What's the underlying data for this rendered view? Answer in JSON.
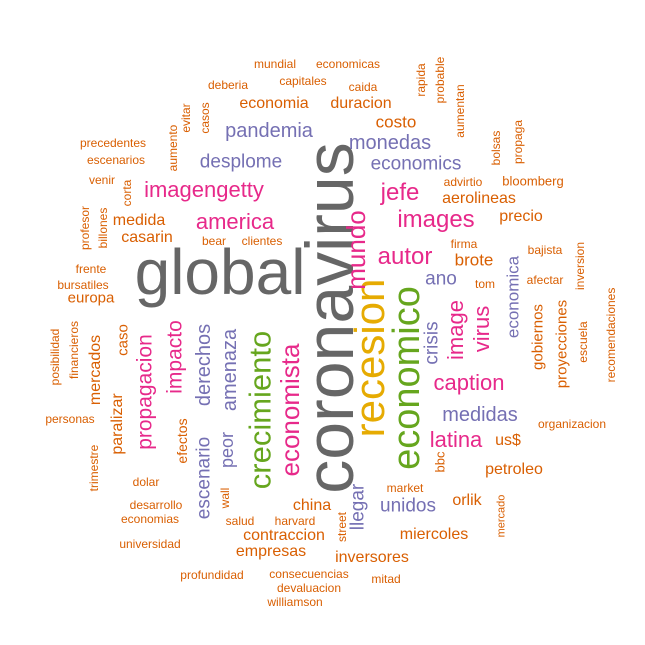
{
  "colors": {
    "gray": "#666666",
    "gold": "#E6AB02",
    "green": "#66A61E",
    "magenta": "#E7298A",
    "purple": "#7570B3",
    "orange": "#D95F02"
  },
  "words": [
    {
      "text": "global",
      "color": "gray",
      "rot": 0
    },
    {
      "text": "coronavirus",
      "color": "gray",
      "rot": 90
    },
    {
      "text": "recesion",
      "color": "gold",
      "rot": 90
    },
    {
      "text": "economico",
      "color": "green",
      "rot": 90
    },
    {
      "text": "crecimiento",
      "color": "green",
      "rot": 90
    },
    {
      "text": "economista",
      "color": "magenta",
      "rot": 90
    },
    {
      "text": "mundo",
      "color": "magenta",
      "rot": 90
    },
    {
      "text": "imagengetty",
      "color": "magenta",
      "rot": 0
    },
    {
      "text": "america",
      "color": "magenta",
      "rot": 0
    },
    {
      "text": "images",
      "color": "magenta",
      "rot": 0
    },
    {
      "text": "jefe",
      "color": "magenta",
      "rot": 0
    },
    {
      "text": "autor",
      "color": "magenta",
      "rot": 0
    },
    {
      "text": "caption",
      "color": "magenta",
      "rot": 0
    },
    {
      "text": "latina",
      "color": "magenta",
      "rot": 0
    },
    {
      "text": "image",
      "color": "magenta",
      "rot": 90
    },
    {
      "text": "virus",
      "color": "magenta",
      "rot": 90
    },
    {
      "text": "propagacion",
      "color": "magenta",
      "rot": 90
    },
    {
      "text": "impacto",
      "color": "magenta",
      "rot": 90
    },
    {
      "text": "amenaza",
      "color": "purple",
      "rot": 90
    },
    {
      "text": "derechos",
      "color": "purple",
      "rot": 90
    },
    {
      "text": "peor",
      "color": "purple",
      "rot": 90
    },
    {
      "text": "escenario",
      "color": "purple",
      "rot": 90
    },
    {
      "text": "pandemia",
      "color": "purple",
      "rot": 0
    },
    {
      "text": "desplome",
      "color": "purple",
      "rot": 0
    },
    {
      "text": "monedas",
      "color": "purple",
      "rot": 0
    },
    {
      "text": "economics",
      "color": "purple",
      "rot": 0
    },
    {
      "text": "medidas",
      "color": "purple",
      "rot": 0
    },
    {
      "text": "unidos",
      "color": "purple",
      "rot": 0
    },
    {
      "text": "ano",
      "color": "purple",
      "rot": 0
    },
    {
      "text": "crisis",
      "color": "purple",
      "rot": 90
    },
    {
      "text": "economica",
      "color": "purple",
      "rot": 90
    },
    {
      "text": "llegar",
      "color": "purple",
      "rot": 90
    },
    {
      "text": "economia",
      "color": "orange",
      "rot": 0
    },
    {
      "text": "duracion",
      "color": "orange",
      "rot": 0
    },
    {
      "text": "costo",
      "color": "orange",
      "rot": 0
    },
    {
      "text": "aerolineas",
      "color": "orange",
      "rot": 0
    },
    {
      "text": "advirtio",
      "color": "orange",
      "rot": 0
    },
    {
      "text": "bloomberg",
      "color": "orange",
      "rot": 0
    },
    {
      "text": "precio",
      "color": "orange",
      "rot": 0
    },
    {
      "text": "brote",
      "color": "orange",
      "rot": 0
    },
    {
      "text": "firma",
      "color": "orange",
      "rot": 0
    },
    {
      "text": "bajista",
      "color": "orange",
      "rot": 0
    },
    {
      "text": "tom",
      "color": "orange",
      "rot": 0
    },
    {
      "text": "afectar",
      "color": "orange",
      "rot": 0
    },
    {
      "text": "gobiernos",
      "color": "orange",
      "rot": 90
    },
    {
      "text": "proyecciones",
      "color": "orange",
      "rot": 90
    },
    {
      "text": "escuela",
      "color": "orange",
      "rot": 90
    },
    {
      "text": "inversion",
      "color": "orange",
      "rot": 90
    },
    {
      "text": "recomendaciones",
      "color": "orange",
      "rot": 90
    },
    {
      "text": "organizacion",
      "color": "orange",
      "rot": 0
    },
    {
      "text": "us$",
      "color": "orange",
      "rot": 0
    },
    {
      "text": "petroleo",
      "color": "orange",
      "rot": 0
    },
    {
      "text": "bbc",
      "color": "orange",
      "rot": 90
    },
    {
      "text": "orlik",
      "color": "orange",
      "rot": 0
    },
    {
      "text": "market",
      "color": "orange",
      "rot": 0
    },
    {
      "text": "miercoles",
      "color": "orange",
      "rot": 0
    },
    {
      "text": "mercado",
      "color": "orange",
      "rot": 90
    },
    {
      "text": "china",
      "color": "orange",
      "rot": 0
    },
    {
      "text": "harvard",
      "color": "orange",
      "rot": 0
    },
    {
      "text": "salud",
      "color": "orange",
      "rot": 0
    },
    {
      "text": "contraccion",
      "color": "orange",
      "rot": 0
    },
    {
      "text": "empresas",
      "color": "orange",
      "rot": 0
    },
    {
      "text": "inversores",
      "color": "orange",
      "rot": 0
    },
    {
      "text": "street",
      "color": "orange",
      "rot": 90
    },
    {
      "text": "wall",
      "color": "orange",
      "rot": 90
    },
    {
      "text": "consecuencias",
      "color": "orange",
      "rot": 0
    },
    {
      "text": "profundidad",
      "color": "orange",
      "rot": 0
    },
    {
      "text": "devaluacion",
      "color": "orange",
      "rot": 0
    },
    {
      "text": "mitad",
      "color": "orange",
      "rot": 0
    },
    {
      "text": "williamson",
      "color": "orange",
      "rot": 0
    },
    {
      "text": "universidad",
      "color": "orange",
      "rot": 0
    },
    {
      "text": "economias",
      "color": "orange",
      "rot": 0
    },
    {
      "text": "desarrollo",
      "color": "orange",
      "rot": 0
    },
    {
      "text": "dolar",
      "color": "orange",
      "rot": 0
    },
    {
      "text": "efectos",
      "color": "orange",
      "rot": 90
    },
    {
      "text": "paralizar",
      "color": "orange",
      "rot": 90
    },
    {
      "text": "mercados",
      "color": "orange",
      "rot": 90
    },
    {
      "text": "caso",
      "color": "orange",
      "rot": 90
    },
    {
      "text": "trimestre",
      "color": "orange",
      "rot": 90
    },
    {
      "text": "personas",
      "color": "orange",
      "rot": 0
    },
    {
      "text": "posibilidad",
      "color": "orange",
      "rot": 90
    },
    {
      "text": "financieros",
      "color": "orange",
      "rot": 90
    },
    {
      "text": "europa",
      "color": "orange",
      "rot": 0
    },
    {
      "text": "bursatiles",
      "color": "orange",
      "rot": 0
    },
    {
      "text": "frente",
      "color": "orange",
      "rot": 0
    },
    {
      "text": "casarin",
      "color": "orange",
      "rot": 0
    },
    {
      "text": "medida",
      "color": "orange",
      "rot": 0
    },
    {
      "text": "bear",
      "color": "orange",
      "rot": 0
    },
    {
      "text": "clientes",
      "color": "orange",
      "rot": 0
    },
    {
      "text": "billones",
      "color": "orange",
      "rot": 90
    },
    {
      "text": "profesor",
      "color": "orange",
      "rot": 90
    },
    {
      "text": "corta",
      "color": "orange",
      "rot": 90
    },
    {
      "text": "venir",
      "color": "orange",
      "rot": 0
    },
    {
      "text": "escenarios",
      "color": "orange",
      "rot": 0
    },
    {
      "text": "precedentes",
      "color": "orange",
      "rot": 0
    },
    {
      "text": "aumento",
      "color": "orange",
      "rot": 90
    },
    {
      "text": "evitar",
      "color": "orange",
      "rot": 90
    },
    {
      "text": "casos",
      "color": "orange",
      "rot": 90
    },
    {
      "text": "deberia",
      "color": "orange",
      "rot": 0
    },
    {
      "text": "capitales",
      "color": "orange",
      "rot": 0
    },
    {
      "text": "mundial",
      "color": "orange",
      "rot": 0
    },
    {
      "text": "economicas",
      "color": "orange",
      "rot": 0
    },
    {
      "text": "caida",
      "color": "orange",
      "rot": 0
    },
    {
      "text": "rapida",
      "color": "orange",
      "rot": 90
    },
    {
      "text": "probable",
      "color": "orange",
      "rot": 90
    },
    {
      "text": "aumentan",
      "color": "orange",
      "rot": 90
    },
    {
      "text": "bolsas",
      "color": "orange",
      "rot": 90
    },
    {
      "text": "propaga",
      "color": "orange",
      "rot": 90
    }
  ]
}
